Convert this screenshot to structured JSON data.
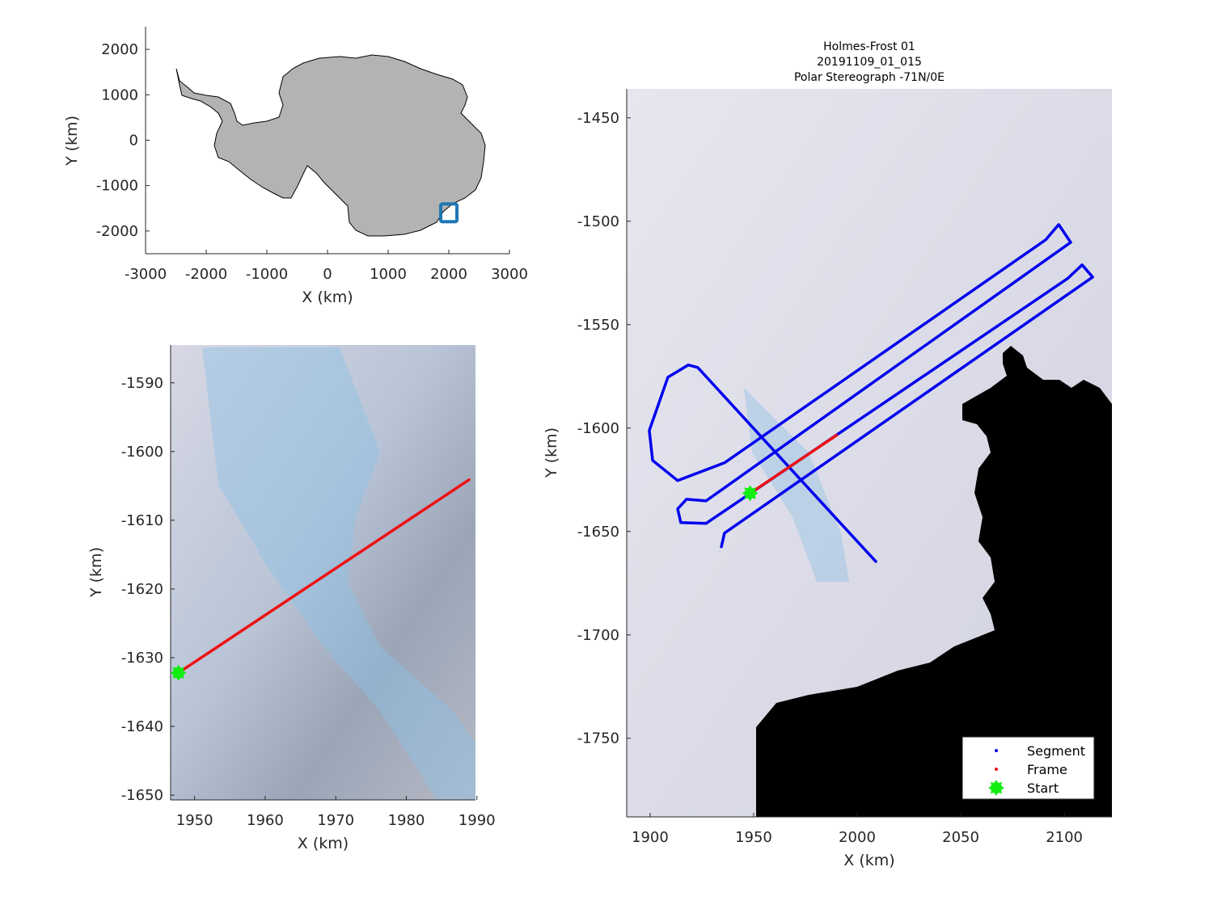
{
  "figure": {
    "title_lines": [
      "Holmes-Frost 01",
      "20191109_01_015",
      "Polar Stereograph -71N/0E"
    ]
  },
  "colors": {
    "segment": "#0000ee",
    "frame": "#ee1111",
    "start": "#11ee11",
    "land": "#b3b3b3",
    "ocean": "#000000",
    "locator_box": "#1f77b4"
  },
  "chart_data": [
    {
      "type": "line",
      "panel": "overview",
      "xlabel": "X (km)",
      "ylabel": "Y (km)",
      "xlim": [
        -3000,
        3000
      ],
      "ylim": [
        -2500,
        2500
      ],
      "xticks": [
        "-3000",
        "-2000",
        "-1000",
        "0",
        "1000",
        "2000",
        "3000"
      ],
      "yticks": [
        "2000",
        "1000",
        "0",
        "-1000",
        "-2000"
      ],
      "grid": false,
      "locator_box_center": [
        2000,
        -1600
      ]
    },
    {
      "type": "line",
      "panel": "frame-zoom",
      "xlabel": "X (km)",
      "ylabel": "Y (km)",
      "xlim": [
        1946.6,
        1989.8
      ],
      "ylim": [
        -1650.7,
        -1584.5
      ],
      "xticks": [
        "1950",
        "1960",
        "1970",
        "1980",
        "1990"
      ],
      "yticks": [
        "-1590",
        "-1600",
        "-1610",
        "-1620",
        "-1630",
        "-1640",
        "-1650"
      ],
      "grid": false,
      "series": [
        {
          "name": "Frame",
          "x": [
            1947.7,
            1988.9
          ],
          "y": [
            -1632.2,
            -1604.1
          ]
        },
        {
          "name": "Start",
          "x": [
            1947.7
          ],
          "y": [
            -1632.2
          ]
        }
      ]
    },
    {
      "type": "line",
      "panel": "segment",
      "xlabel": "X (km)",
      "ylabel": "Y (km)",
      "xlim": [
        1888.7,
        2123.0
      ],
      "ylim": [
        -1788.0,
        -1436.0
      ],
      "xticks": [
        "1900",
        "1950",
        "2000",
        "2050",
        "2100"
      ],
      "yticks": [
        "-1450",
        "-1500",
        "-1550",
        "-1600",
        "-1650",
        "-1700",
        "-1750"
      ],
      "grid": false,
      "legend": {
        "placement": "bottom-right",
        "entries": [
          "Segment",
          "Frame",
          "Start"
        ]
      },
      "series": [
        {
          "name": "Segment",
          "x": [
            1934.4,
            1935.9,
            2113.7,
            2108.6,
            2101.6,
            1927.0,
            1914.8,
            1913.3,
            1917.6,
            1927.0,
            2103.1,
            2097.3,
            2091.0,
            1935.9,
            1913.3,
            1901.2,
            1899.6,
            1908.6,
            1918.4,
            1923.0,
            1990.2,
            2009.0
          ],
          "y": [
            -1657.4,
            -1650.8,
            -1527.0,
            -1521.1,
            -1527.7,
            -1646.1,
            -1645.7,
            -1639.1,
            -1634.4,
            -1635.2,
            -1510.2,
            -1501.6,
            -1509.0,
            -1616.8,
            -1625.4,
            -1615.6,
            -1601.2,
            -1575.4,
            -1569.5,
            -1570.7,
            -1644.1,
            -1664.5
          ]
        },
        {
          "name": "Frame",
          "x": [
            1948.3,
            1990.0
          ],
          "y": [
            -1631.5,
            -1603.5
          ]
        },
        {
          "name": "Start",
          "x": [
            1948.3
          ],
          "y": [
            -1631.5
          ]
        }
      ]
    }
  ]
}
